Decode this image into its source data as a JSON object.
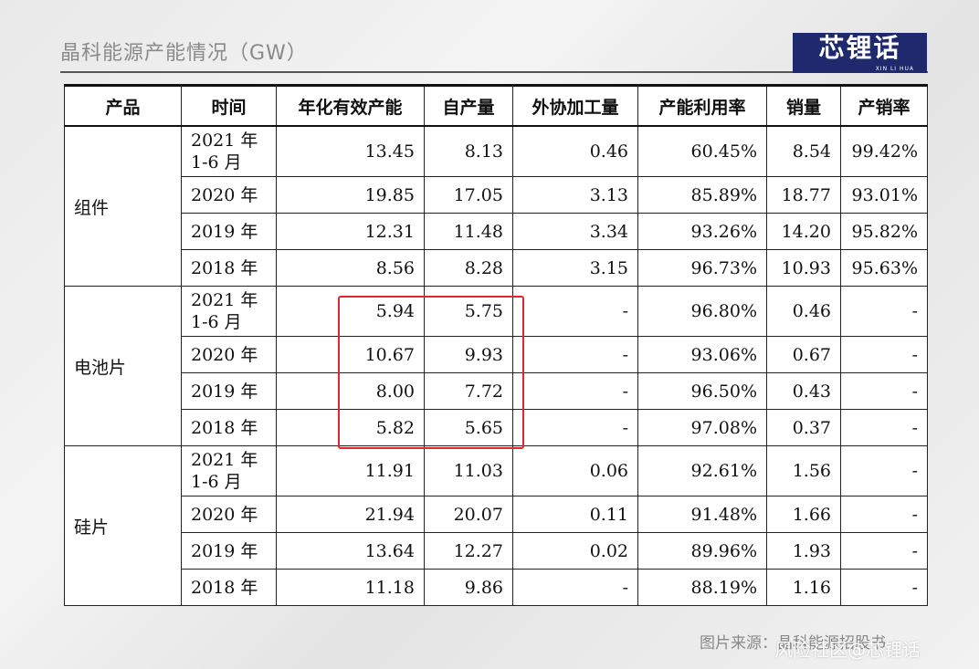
{
  "title": "晶科能源产能情况（GW）",
  "logo": {
    "cn": "芯锂话",
    "en": "XIN LI HUA"
  },
  "table": {
    "headers": [
      "产品",
      "时间",
      "年化有效产能",
      "自产量",
      "外协加工量",
      "产能利用率",
      "销量",
      "产销率"
    ],
    "groups": [
      {
        "product": "组件",
        "rows": [
          {
            "time": "2021 年 1-6 月",
            "capacity": "13.45",
            "self": "8.13",
            "outsource": "0.46",
            "util": "60.45%",
            "sales": "8.54",
            "ratio": "99.42%"
          },
          {
            "time": "2020 年",
            "capacity": "19.85",
            "self": "17.05",
            "outsource": "3.13",
            "util": "85.89%",
            "sales": "18.77",
            "ratio": "93.01%"
          },
          {
            "time": "2019 年",
            "capacity": "12.31",
            "self": "11.48",
            "outsource": "3.34",
            "util": "93.26%",
            "sales": "14.20",
            "ratio": "95.82%"
          },
          {
            "time": "2018 年",
            "capacity": "8.56",
            "self": "8.28",
            "outsource": "3.15",
            "util": "96.73%",
            "sales": "10.93",
            "ratio": "95.63%"
          }
        ]
      },
      {
        "product": "电池片",
        "rows": [
          {
            "time": "2021 年 1-6 月",
            "capacity": "5.94",
            "self": "5.75",
            "outsource": "-",
            "util": "96.80%",
            "sales": "0.46",
            "ratio": "-"
          },
          {
            "time": "2020 年",
            "capacity": "10.67",
            "self": "9.93",
            "outsource": "-",
            "util": "93.06%",
            "sales": "0.67",
            "ratio": "-"
          },
          {
            "time": "2019 年",
            "capacity": "8.00",
            "self": "7.72",
            "outsource": "-",
            "util": "96.50%",
            "sales": "0.43",
            "ratio": "-"
          },
          {
            "time": "2018 年",
            "capacity": "5.82",
            "self": "5.65",
            "outsource": "-",
            "util": "97.08%",
            "sales": "0.37",
            "ratio": "-"
          }
        ]
      },
      {
        "product": "硅片",
        "rows": [
          {
            "time": "2021 年 1-6 月",
            "capacity": "11.91",
            "self": "11.03",
            "outsource": "0.06",
            "util": "92.61%",
            "sales": "1.56",
            "ratio": "-"
          },
          {
            "time": "2020 年",
            "capacity": "21.94",
            "self": "20.07",
            "outsource": "0.11",
            "util": "91.48%",
            "sales": "1.66",
            "ratio": "-"
          },
          {
            "time": "2019 年",
            "capacity": "13.64",
            "self": "12.27",
            "outsource": "0.02",
            "util": "89.96%",
            "sales": "1.93",
            "ratio": "-"
          },
          {
            "time": "2018 年",
            "capacity": "11.18",
            "self": "9.86",
            "outsource": "-",
            "util": "88.19%",
            "sales": "1.16",
            "ratio": "-"
          }
        ]
      }
    ]
  },
  "source": "图片来源：晶科能源招股书",
  "watermark": "风险社区@芯锂话",
  "colors": {
    "highlight": "#e0262a",
    "logo_bg": "#1f2a6e"
  }
}
